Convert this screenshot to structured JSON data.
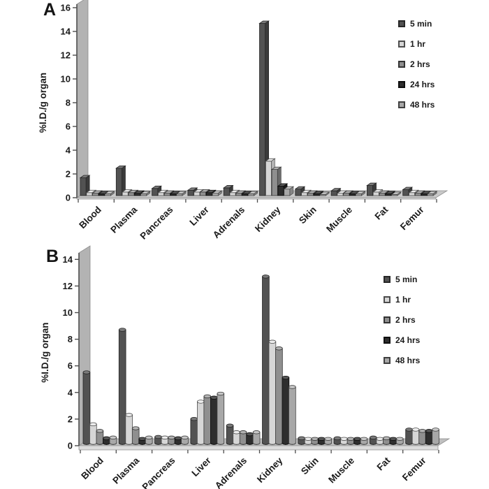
{
  "figure": {
    "background": "#ffffff",
    "panels": [
      {
        "label": "A"
      },
      {
        "label": "B"
      }
    ]
  },
  "colors": {
    "wall": "#b3b3b3",
    "wall_edge": "#8f8f8f",
    "floor_a": "#c9c9c9",
    "floor_b": "#bfbfbf",
    "floor_face": "#dcdcdc",
    "axis": "#4d4d4d",
    "text": "#1a1a1a"
  },
  "series_colors": [
    {
      "name": "5 min",
      "fill": "#525252",
      "top": "#7a7a7a",
      "side": "#3a3a3a",
      "edge": "#262626"
    },
    {
      "name": "1 hr",
      "fill": "#d6d6d6",
      "top": "#ededed",
      "side": "#b3b3b3",
      "edge": "#4d4d4d"
    },
    {
      "name": "2 hrs",
      "fill": "#8f8f8f",
      "top": "#b2b2b2",
      "side": "#6b6b6b",
      "edge": "#333333"
    },
    {
      "name": "24 hrs",
      "fill": "#2e2e2e",
      "top": "#565656",
      "side": "#171717",
      "edge": "#0d0d0d"
    },
    {
      "name": "48 hrs",
      "fill": "#a8a8a8",
      "top": "#c7c7c7",
      "side": "#868686",
      "edge": "#404040"
    }
  ],
  "chart_data": [
    {
      "type": "bar",
      "style": "3d-box",
      "panel": "A",
      "title": "",
      "xlabel": "",
      "ylabel": "%I.D./g organ",
      "ylim": [
        0,
        16
      ],
      "ytick_step": 2,
      "grid": false,
      "legend_position": "top-right",
      "categories": [
        "Blood",
        "Plasma",
        "Pancreas",
        "Liver",
        "Adrenals",
        "Kidney",
        "Skin",
        "Muscle",
        "Fat",
        "Femur"
      ],
      "series": [
        {
          "name": "5 min",
          "values": [
            1.5,
            2.3,
            0.6,
            0.45,
            0.65,
            14.5,
            0.55,
            0.4,
            0.85,
            0.5
          ]
        },
        {
          "name": "1 hr",
          "values": [
            0.25,
            0.3,
            0.25,
            0.3,
            0.25,
            2.9,
            0.25,
            0.2,
            0.3,
            0.25
          ]
        },
        {
          "name": "2 hrs",
          "values": [
            0.2,
            0.25,
            0.2,
            0.3,
            0.2,
            2.2,
            0.2,
            0.2,
            0.2,
            0.2
          ]
        },
        {
          "name": "24 hrs",
          "values": [
            0.15,
            0.2,
            0.15,
            0.25,
            0.15,
            0.8,
            0.15,
            0.15,
            0.15,
            0.15
          ]
        },
        {
          "name": "48 hrs",
          "values": [
            0.15,
            0.15,
            0.15,
            0.2,
            0.15,
            0.55,
            0.1,
            0.15,
            0.1,
            0.15
          ]
        }
      ]
    },
    {
      "type": "bar",
      "style": "3d-cylinder",
      "panel": "B",
      "title": "",
      "xlabel": "",
      "ylabel": "%I.D./g organ",
      "ylim": [
        0,
        14
      ],
      "ytick_step": 2,
      "grid": false,
      "legend_position": "top-right",
      "categories": [
        "Blood",
        "Plasma",
        "Pancreas",
        "Liver",
        "Adrenals",
        "Kidney",
        "Skin",
        "Muscle",
        "Fat",
        "Femur"
      ],
      "series": [
        {
          "name": "5 min",
          "values": [
            5.3,
            8.5,
            0.45,
            1.8,
            1.3,
            12.5,
            0.35,
            0.35,
            0.4,
            1.0
          ]
        },
        {
          "name": "1 hr",
          "values": [
            1.4,
            2.1,
            0.4,
            3.1,
            0.8,
            7.6,
            0.3,
            0.3,
            0.3,
            1.0
          ]
        },
        {
          "name": "2 hrs",
          "values": [
            0.9,
            1.1,
            0.4,
            3.5,
            0.8,
            7.1,
            0.3,
            0.3,
            0.35,
            0.9
          ]
        },
        {
          "name": "24 hrs",
          "values": [
            0.35,
            0.3,
            0.35,
            3.4,
            0.65,
            4.9,
            0.3,
            0.3,
            0.3,
            0.9
          ]
        },
        {
          "name": "48 hrs",
          "values": [
            0.4,
            0.4,
            0.4,
            3.7,
            0.8,
            4.2,
            0.3,
            0.3,
            0.3,
            1.0
          ]
        }
      ]
    }
  ]
}
